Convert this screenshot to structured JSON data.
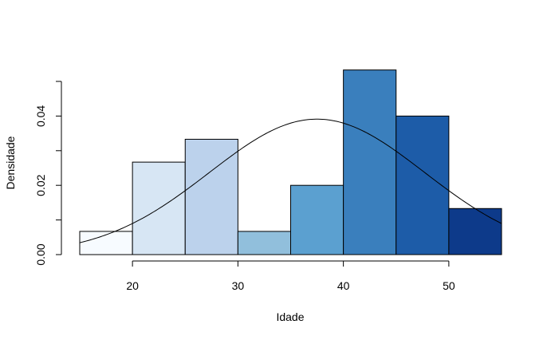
{
  "chart_data": {
    "type": "bar",
    "subtype": "histogram",
    "xlabel": "Idade",
    "ylabel": "Densidade",
    "xlim": [
      15,
      55
    ],
    "ylim": [
      0,
      0.05
    ],
    "x_ticks": [
      20,
      30,
      40,
      50
    ],
    "x_tick_labels": [
      "20",
      "30",
      "40",
      "50"
    ],
    "y_ticks": [
      0,
      0.01,
      0.02,
      0.03,
      0.04,
      0.05
    ],
    "y_tick_labels": [
      "0.00",
      "",
      "0.02",
      "",
      "0.04",
      ""
    ],
    "bins": [
      {
        "from": 15,
        "to": 20,
        "density": 0.0067,
        "color": "#f7fbff"
      },
      {
        "from": 20,
        "to": 25,
        "density": 0.0267,
        "color": "#d7e6f4"
      },
      {
        "from": 25,
        "to": 30,
        "density": 0.0333,
        "color": "#bcd2ec"
      },
      {
        "from": 30,
        "to": 35,
        "density": 0.0067,
        "color": "#91bfdc"
      },
      {
        "from": 35,
        "to": 40,
        "density": 0.02,
        "color": "#5ba0d0"
      },
      {
        "from": 40,
        "to": 45,
        "density": 0.0533,
        "color": "#3a7fbd"
      },
      {
        "from": 45,
        "to": 50,
        "density": 0.04,
        "color": "#1d5ca8"
      },
      {
        "from": 50,
        "to": 55,
        "density": 0.0133,
        "color": "#0d3a8a"
      }
    ],
    "curve": {
      "type": "normal-density",
      "mean": 37.5,
      "sd": 10.2
    },
    "grid": false,
    "legend": "none"
  }
}
